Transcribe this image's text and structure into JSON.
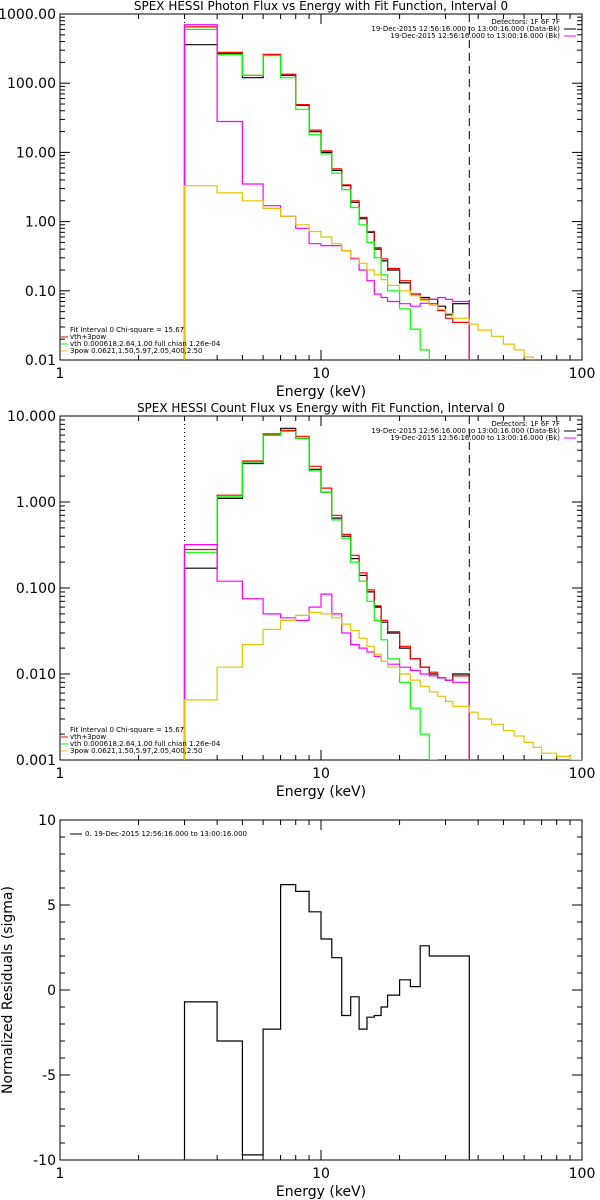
{
  "chart_data": [
    {
      "type": "line",
      "title": "SPEX HESSI Photon Flux vs Energy with Fit Function, Interval 0",
      "xlabel": "Energy (keV)",
      "ylabel": "",
      "xscale": "log",
      "yscale": "log",
      "xlim": [
        1,
        100
      ],
      "ylim": [
        0.01,
        1000
      ],
      "xticks": [
        "1",
        "10",
        "100"
      ],
      "yticks": [
        "0.01",
        "0.10",
        "1.00",
        "10.00",
        "100.00",
        "1000.00"
      ],
      "legend_top": [
        "Detectors: 1F 6F 7F",
        "19-Dec-2015 12:56:16.000 to 13:00:16.000 (Data-Bk)",
        "19-Dec-2015 12:56:16.000 to 13:00:16.000 (Bk)"
      ],
      "legend_bottom": [
        "Fit Interval 0   Chi-square = 15.67",
        "vth+3pow",
        "vth 0.000618,2.64,1.00  full chian 1.26e-04",
        "3pow 0.0621,1.50,5.97,2.05,400,2.50"
      ],
      "vlines": [
        3.0,
        37.0
      ],
      "series": [
        {
          "color": "#000000",
          "edges": [
            3,
            4,
            5,
            6,
            7,
            8,
            9,
            10,
            11,
            12,
            13,
            14,
            15,
            16,
            17,
            18,
            20,
            22,
            24,
            26,
            28,
            30,
            32,
            37
          ],
          "values": [
            360,
            270,
            120,
            260,
            130,
            48,
            20,
            10,
            5.5,
            3.3,
            1.9,
            1.1,
            0.7,
            0.4,
            0.27,
            0.2,
            0.13,
            0.09,
            0.08,
            0.075,
            0.06,
            0.045,
            0.065
          ]
        },
        {
          "color": "#ff0000",
          "edges": [
            3,
            4,
            5,
            6,
            7,
            8,
            9,
            10,
            11,
            12,
            13,
            14,
            15,
            16,
            17,
            18,
            20,
            22,
            24,
            26,
            28,
            30,
            32,
            37
          ],
          "values": [
            650,
            280,
            130,
            260,
            135,
            49,
            21,
            10.5,
            5.8,
            3.4,
            2.0,
            1.15,
            0.72,
            0.42,
            0.29,
            0.21,
            0.14,
            0.09,
            0.075,
            0.065,
            0.052,
            0.04,
            0.035
          ]
        },
        {
          "color": "#00ff00",
          "edges": [
            3,
            4,
            5,
            6,
            7,
            8,
            9,
            10,
            11,
            12,
            13,
            14,
            15,
            16,
            17,
            18,
            20,
            22,
            24,
            26
          ],
          "values": [
            600,
            260,
            130,
            250,
            120,
            42,
            18,
            9.5,
            5.0,
            2.9,
            1.6,
            0.9,
            0.5,
            0.3,
            0.17,
            0.1,
            0.055,
            0.028,
            0.014
          ]
        },
        {
          "color": "#ff00ff",
          "edges": [
            3,
            4,
            5,
            6,
            7,
            8,
            9,
            10,
            11,
            12,
            13,
            14,
            15,
            16,
            17,
            18,
            20,
            22,
            24,
            26,
            28,
            30,
            32,
            37
          ],
          "values": [
            700,
            28,
            3.5,
            1.7,
            1.2,
            0.8,
            0.48,
            0.45,
            0.45,
            0.38,
            0.29,
            0.2,
            0.14,
            0.09,
            0.08,
            0.07,
            0.065,
            0.06,
            0.066,
            0.075,
            0.08,
            0.075,
            0.07
          ]
        },
        {
          "color": "#e6c400",
          "edges": [
            3,
            4,
            5,
            6,
            7,
            8,
            9,
            10,
            11,
            12,
            13,
            14,
            15,
            16,
            17,
            18,
            20,
            22,
            24,
            26,
            28,
            30,
            32,
            37,
            40,
            45,
            50,
            55,
            60,
            65
          ],
          "values": [
            3.3,
            2.6,
            2.0,
            1.55,
            1.2,
            0.9,
            0.72,
            0.6,
            0.48,
            0.38,
            0.3,
            0.25,
            0.2,
            0.17,
            0.145,
            0.12,
            0.1,
            0.085,
            0.073,
            0.062,
            0.054,
            0.047,
            0.04,
            0.033,
            0.027,
            0.022,
            0.017,
            0.014,
            0.011
          ]
        }
      ]
    },
    {
      "type": "line",
      "title": "SPEX HESSI Count Flux vs Energy with Fit Function, Interval 0",
      "xlabel": "Energy (keV)",
      "ylabel": "",
      "xscale": "log",
      "yscale": "log",
      "xlim": [
        1,
        100
      ],
      "ylim": [
        0.001,
        10
      ],
      "xticks": [
        "1",
        "10",
        "100"
      ],
      "yticks": [
        "0.001",
        "0.010",
        "0.100",
        "1.000",
        "10.000"
      ],
      "legend_top": [
        "Detectors: 1F 6F 7F",
        "19-Dec-2015 12:56:16.000 to 13:00:16.000 (Data-Bk)",
        "19-Dec-2015 12:56:16.000 to 13:00:16.000 (Bk)"
      ],
      "legend_bottom": [
        "Fit Interval 0   Chi-square = 15.67",
        "vth+3pow",
        "vth 0.000618,2.64,1.00  full chian 1.26e-04",
        "3pow 0.0621,1.50,5.97,2.05,400,2.50"
      ],
      "vlines": [
        3.0,
        37.0
      ],
      "series": [
        {
          "color": "#000000",
          "edges": [
            3,
            4,
            5,
            6,
            7,
            8,
            9,
            10,
            11,
            12,
            13,
            14,
            15,
            16,
            17,
            18,
            20,
            22,
            24,
            26,
            28,
            30,
            32,
            37
          ],
          "values": [
            0.17,
            1.1,
            2.8,
            6.0,
            7.2,
            5.5,
            2.4,
            1.3,
            0.65,
            0.4,
            0.22,
            0.14,
            0.09,
            0.06,
            0.04,
            0.03,
            0.02,
            0.015,
            0.012,
            0.01,
            0.009,
            0.0085,
            0.01
          ]
        },
        {
          "color": "#ff0000",
          "edges": [
            3,
            4,
            5,
            6,
            7,
            8,
            9,
            10,
            11,
            12,
            13,
            14,
            15,
            16,
            17,
            18,
            20,
            22,
            24,
            26,
            28,
            30,
            32,
            37
          ],
          "values": [
            0.28,
            1.2,
            3.0,
            6.2,
            6.8,
            5.8,
            2.6,
            1.45,
            0.7,
            0.42,
            0.24,
            0.15,
            0.095,
            0.062,
            0.042,
            0.031,
            0.021,
            0.015,
            0.012,
            0.0105,
            0.009,
            0.0085,
            0.0095
          ]
        },
        {
          "color": "#00ff00",
          "edges": [
            3,
            4,
            5,
            6,
            7,
            8,
            9,
            10,
            11,
            12,
            13,
            14,
            15,
            16,
            17,
            18,
            20,
            22,
            24,
            26,
            28
          ],
          "values": [
            0.26,
            1.15,
            2.9,
            6.0,
            6.6,
            5.5,
            2.3,
            1.3,
            0.62,
            0.38,
            0.2,
            0.12,
            0.07,
            0.042,
            0.025,
            0.015,
            0.008,
            0.004,
            0.002,
            0.001
          ]
        },
        {
          "color": "#ff00ff",
          "edges": [
            3,
            4,
            5,
            6,
            7,
            8,
            9,
            10,
            11,
            12,
            13,
            14,
            15,
            16,
            17,
            18,
            20,
            22,
            24,
            26,
            28,
            30,
            32,
            37
          ],
          "values": [
            0.32,
            0.12,
            0.075,
            0.05,
            0.045,
            0.042,
            0.06,
            0.085,
            0.05,
            0.03,
            0.022,
            0.02,
            0.018,
            0.016,
            0.014,
            0.013,
            0.012,
            0.011,
            0.01,
            0.0095,
            0.009,
            0.0085,
            0.008
          ]
        },
        {
          "color": "#e6c400",
          "edges": [
            3,
            4,
            5,
            6,
            7,
            8,
            9,
            10,
            11,
            12,
            13,
            14,
            15,
            16,
            17,
            18,
            20,
            22,
            24,
            26,
            28,
            30,
            32,
            37,
            40,
            45,
            50,
            55,
            60,
            65,
            70,
            80,
            90,
            100
          ],
          "values": [
            0.005,
            0.012,
            0.022,
            0.033,
            0.042,
            0.048,
            0.052,
            0.05,
            0.045,
            0.038,
            0.032,
            0.026,
            0.021,
            0.017,
            0.014,
            0.012,
            0.01,
            0.0085,
            0.0072,
            0.0062,
            0.0055,
            0.0048,
            0.0042,
            0.0036,
            0.003,
            0.0026,
            0.0022,
            0.0019,
            0.0016,
            0.0014,
            0.0012,
            0.0011,
            0.001
          ]
        }
      ]
    },
    {
      "type": "line",
      "title": "",
      "xlabel": "Energy (keV)",
      "ylabel": "Normalized Residuals (sigma)",
      "xscale": "log",
      "yscale": "linear",
      "xlim": [
        1,
        100
      ],
      "ylim": [
        -10,
        10
      ],
      "xticks": [
        "1",
        "10",
        "100"
      ],
      "yticks": [
        "-10",
        "-5",
        "0",
        "5",
        "10"
      ],
      "legend_top": [
        "0. 19-Dec-2015 12:56:16.000 to 13:00:16.000"
      ],
      "series": [
        {
          "color": "#000000",
          "edges": [
            3,
            4,
            5,
            6,
            7,
            8,
            9,
            10,
            11,
            12,
            13,
            14,
            15,
            16,
            17,
            18,
            20,
            22,
            24,
            26,
            28,
            30,
            32,
            37
          ],
          "values": [
            -0.7,
            -3.0,
            -9.7,
            -2.3,
            6.2,
            5.8,
            4.6,
            3.0,
            1.9,
            -1.5,
            -0.4,
            -2.3,
            -1.6,
            -1.5,
            -1.0,
            -0.3,
            0.6,
            0.2,
            2.6,
            2.0,
            2.0,
            2.0,
            2.0
          ]
        }
      ]
    }
  ]
}
